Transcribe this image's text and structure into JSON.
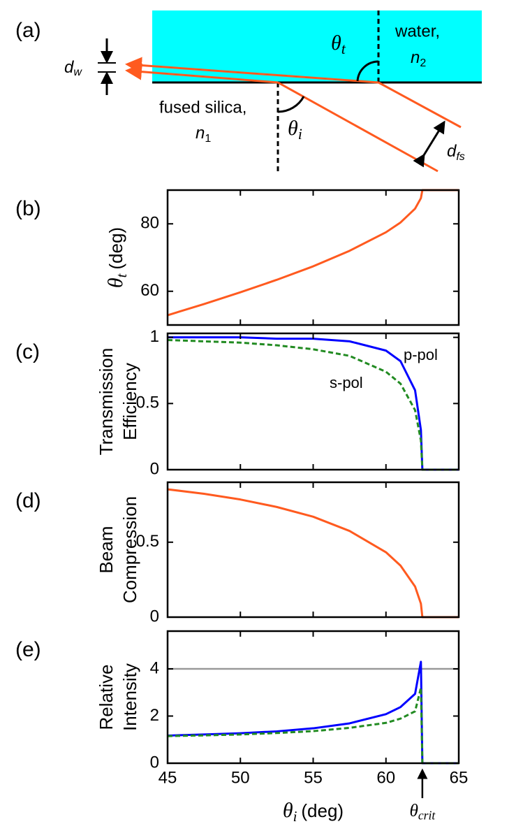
{
  "diagram": {
    "panel_label": "(a)",
    "dw": {
      "base": "d",
      "sub": "w"
    },
    "water": "water,",
    "n2": {
      "base": "n",
      "sub": "2"
    },
    "silica": "fused silica,",
    "n1": {
      "base": "n",
      "sub": "1"
    },
    "theta_t": {
      "base": "θ",
      "sub": "t"
    },
    "theta_i": {
      "base": "θ",
      "sub": "i"
    },
    "dfs": {
      "base": "d",
      "sub": "fs"
    }
  },
  "chart_data": [
    {
      "type": "line",
      "panel_label": "(b)",
      "ylabel": [
        {
          "base": "θ",
          "sub": "t",
          "rest": "(deg)"
        }
      ],
      "xlim": [
        45,
        65
      ],
      "ylim": [
        50,
        90
      ],
      "yticks": [
        60,
        80
      ],
      "x": [
        45,
        47.5,
        50,
        52.5,
        55,
        57.5,
        60,
        61,
        62,
        62.4,
        62.5,
        63,
        65
      ],
      "series": [
        {
          "color": "#ff5a1f",
          "values": [
            52.9,
            56.2,
            59.7,
            63.4,
            67.4,
            72.0,
            77.5,
            80.4,
            84.5,
            87.6,
            90,
            90,
            90
          ]
        }
      ]
    },
    {
      "type": "line",
      "panel_label": "(c)",
      "ylabel": [
        "Transmission",
        "Efficiency"
      ],
      "xlim": [
        45,
        65
      ],
      "ylim": [
        0,
        1.03
      ],
      "yticks": [
        0,
        0.5,
        1
      ],
      "x": [
        45,
        47.5,
        50,
        52.5,
        55,
        57.5,
        60,
        61,
        62,
        62.4,
        62.5,
        63,
        65
      ],
      "series": [
        {
          "name": "p-pol",
          "color": "#0000ff",
          "values": [
            1.0,
            1.0,
            1.0,
            0.99,
            0.99,
            0.97,
            0.9,
            0.82,
            0.6,
            0.3,
            0,
            0,
            0
          ]
        },
        {
          "name": "s-pol",
          "color": "#228b22",
          "dash": true,
          "values": [
            0.98,
            0.97,
            0.96,
            0.94,
            0.91,
            0.86,
            0.74,
            0.65,
            0.45,
            0.22,
            0,
            0,
            0
          ]
        }
      ]
    },
    {
      "type": "line",
      "panel_label": "(d)",
      "ylabel": [
        "Beam",
        "Compression"
      ],
      "xlim": [
        45,
        65
      ],
      "ylim": [
        0,
        0.9
      ],
      "yticks": [
        0,
        0.5
      ],
      "x": [
        45,
        47.5,
        50,
        52.5,
        55,
        57.5,
        60,
        61,
        62,
        62.4,
        62.5,
        63,
        65
      ],
      "series": [
        {
          "color": "#ff5a1f",
          "values": [
            0.853,
            0.823,
            0.785,
            0.735,
            0.67,
            0.575,
            0.433,
            0.344,
            0.204,
            0.09,
            0,
            0,
            0
          ]
        }
      ]
    },
    {
      "type": "line",
      "panel_label": "(e)",
      "ylabel": [
        "Relative",
        "Intensity"
      ],
      "xlabel": {
        "base": "θ",
        "sub": "i",
        "rest": "(deg)"
      },
      "xannotation": {
        "base": "θ",
        "sub": "crit",
        "x": 62.5
      },
      "xlim": [
        45,
        65
      ],
      "ylim": [
        0,
        5.6
      ],
      "yticks": [
        0,
        2,
        4
      ],
      "xticks": [
        45,
        50,
        55,
        60,
        65
      ],
      "hline": 4,
      "hline_color": "#999999",
      "x": [
        45,
        47.5,
        50,
        52.5,
        55,
        57.5,
        60,
        61,
        62,
        62.4,
        62.5,
        63,
        65
      ],
      "series": [
        {
          "color": "#0000ff",
          "values": [
            1.17,
            1.22,
            1.27,
            1.35,
            1.48,
            1.69,
            2.08,
            2.38,
            2.94,
            4.3,
            0,
            0,
            0
          ]
        },
        {
          "color": "#228b22",
          "dash": true,
          "values": [
            1.15,
            1.18,
            1.22,
            1.28,
            1.36,
            1.5,
            1.71,
            1.89,
            2.2,
            3.2,
            0,
            0,
            0
          ]
        }
      ]
    }
  ]
}
